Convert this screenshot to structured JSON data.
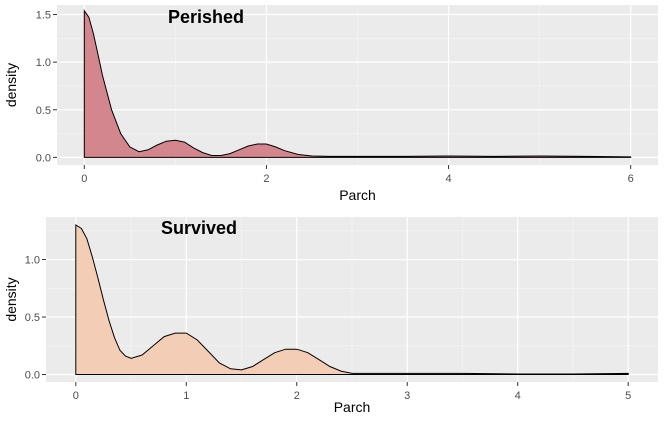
{
  "chart_data": [
    {
      "type": "area",
      "title": "Perished",
      "xlabel": "Parch",
      "ylabel": "density",
      "xlim": [
        -0.3,
        6.3
      ],
      "ylim": [
        -0.08,
        1.6
      ],
      "xticks": [
        0,
        2,
        4,
        6
      ],
      "yticks": [
        0.0,
        0.5,
        1.0,
        1.5
      ],
      "xtick_labels": [
        "0",
        "2",
        "4",
        "6"
      ],
      "ytick_labels": [
        "0.0",
        "0.5",
        "1.0",
        "1.5"
      ],
      "fill_color": "#d4868f",
      "grid": true,
      "x": [
        0,
        0.05,
        0.1,
        0.15,
        0.2,
        0.3,
        0.4,
        0.5,
        0.6,
        0.7,
        0.8,
        0.9,
        1.0,
        1.1,
        1.2,
        1.3,
        1.4,
        1.5,
        1.6,
        1.7,
        1.8,
        1.9,
        2.0,
        2.1,
        2.2,
        2.35,
        2.5,
        2.7,
        3.0,
        3.5,
        4.0,
        4.5,
        5.0,
        5.5,
        6.0
      ],
      "y": [
        1.54,
        1.47,
        1.3,
        1.08,
        0.86,
        0.5,
        0.25,
        0.11,
        0.06,
        0.08,
        0.13,
        0.17,
        0.18,
        0.16,
        0.1,
        0.05,
        0.02,
        0.02,
        0.04,
        0.08,
        0.12,
        0.14,
        0.14,
        0.11,
        0.07,
        0.03,
        0.015,
        0.01,
        0.01,
        0.01,
        0.015,
        0.01,
        0.015,
        0.01,
        0.005
      ]
    },
    {
      "type": "area",
      "title": "Survived",
      "xlabel": "Parch",
      "ylabel": "density",
      "xlim": [
        -0.27,
        5.27
      ],
      "ylim": [
        -0.065,
        1.37
      ],
      "xticks": [
        0,
        1,
        2,
        3,
        4,
        5
      ],
      "yticks": [
        0.0,
        0.5,
        1.0
      ],
      "xtick_labels": [
        "0",
        "1",
        "2",
        "3",
        "4",
        "5"
      ],
      "ytick_labels": [
        "0.0",
        "0.5",
        "1.0"
      ],
      "fill_color": "#f4cdb7",
      "grid": true,
      "x": [
        0,
        0.05,
        0.1,
        0.15,
        0.2,
        0.25,
        0.3,
        0.35,
        0.4,
        0.45,
        0.5,
        0.6,
        0.7,
        0.8,
        0.9,
        1.0,
        1.1,
        1.2,
        1.3,
        1.4,
        1.5,
        1.6,
        1.7,
        1.8,
        1.9,
        2.0,
        2.1,
        2.2,
        2.3,
        2.4,
        2.5,
        2.7,
        3.0,
        3.5,
        4.0,
        4.5,
        5.0
      ],
      "y": [
        1.3,
        1.27,
        1.18,
        1.02,
        0.84,
        0.65,
        0.47,
        0.32,
        0.21,
        0.16,
        0.14,
        0.17,
        0.25,
        0.33,
        0.36,
        0.36,
        0.3,
        0.2,
        0.1,
        0.05,
        0.04,
        0.07,
        0.13,
        0.19,
        0.22,
        0.22,
        0.19,
        0.13,
        0.07,
        0.03,
        0.01,
        0.01,
        0.01,
        0.01,
        0.005,
        0.005,
        0.01
      ]
    }
  ]
}
